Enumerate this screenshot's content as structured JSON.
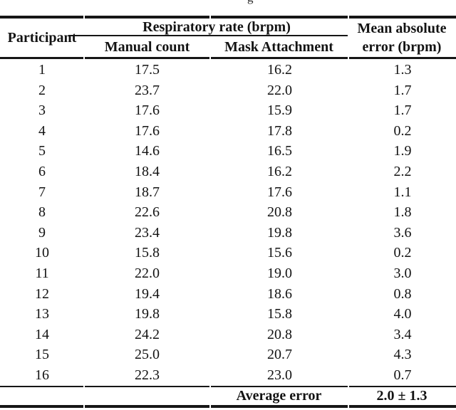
{
  "page": {
    "background": "#ffffff",
    "ink": "#131313",
    "caption_fragment": "g"
  },
  "table": {
    "header": {
      "participant": "Participant",
      "respiratory_group": "Respiratory rate (brpm)",
      "manual_count": "Manual count",
      "mask_attachment": "Mask Attachment",
      "mean_abs_error_line1": "Mean absolute",
      "mean_abs_error_line2": "error (brpm)"
    },
    "rows": [
      {
        "participant": "1",
        "manual": "17.5",
        "mask": "16.2",
        "error": "1.3"
      },
      {
        "participant": "2",
        "manual": "23.7",
        "mask": "22.0",
        "error": "1.7"
      },
      {
        "participant": "3",
        "manual": "17.6",
        "mask": "15.9",
        "error": "1.7"
      },
      {
        "participant": "4",
        "manual": "17.6",
        "mask": "17.8",
        "error": "0.2"
      },
      {
        "participant": "5",
        "manual": "14.6",
        "mask": "16.5",
        "error": "1.9"
      },
      {
        "participant": "6",
        "manual": "18.4",
        "mask": "16.2",
        "error": "2.2"
      },
      {
        "participant": "7",
        "manual": "18.7",
        "mask": "17.6",
        "error": "1.1"
      },
      {
        "participant": "8",
        "manual": "22.6",
        "mask": "20.8",
        "error": "1.8"
      },
      {
        "participant": "9",
        "manual": "23.4",
        "mask": "19.8",
        "error": "3.6"
      },
      {
        "participant": "10",
        "manual": "15.8",
        "mask": "15.6",
        "error": "0.2"
      },
      {
        "participant": "11",
        "manual": "22.0",
        "mask": "19.0",
        "error": "3.0"
      },
      {
        "participant": "12",
        "manual": "19.4",
        "mask": "18.6",
        "error": "0.8"
      },
      {
        "participant": "13",
        "manual": "19.8",
        "mask": "15.8",
        "error": "4.0"
      },
      {
        "participant": "14",
        "manual": "24.2",
        "mask": "20.8",
        "error": "3.4"
      },
      {
        "participant": "15",
        "manual": "25.0",
        "mask": "20.7",
        "error": "4.3"
      },
      {
        "participant": "16",
        "manual": "22.3",
        "mask": "23.0",
        "error": "0.7"
      }
    ],
    "footer": {
      "label": "Average error",
      "value": "2.0 ± 1.3"
    }
  }
}
